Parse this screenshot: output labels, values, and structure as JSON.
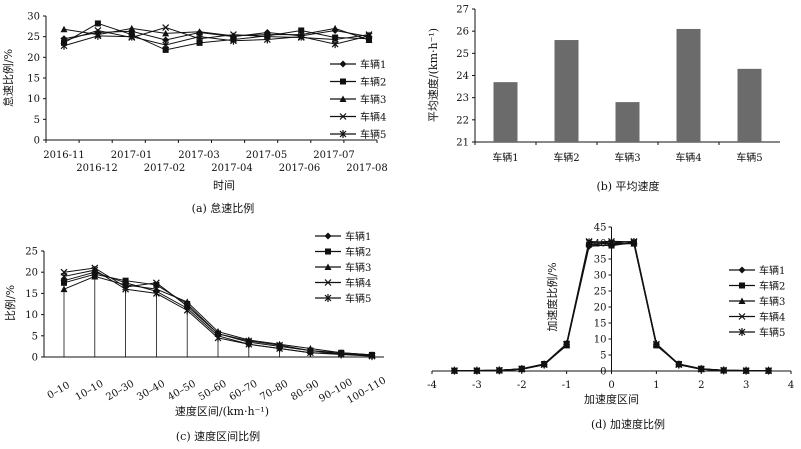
{
  "chart_data": [
    {
      "id": "a",
      "type": "line",
      "caption": "(a) 怠速比例",
      "ylabel": "怠速比例/%",
      "xlabel": "时间",
      "ylim": [
        0,
        30
      ],
      "yticks": [
        0,
        5,
        10,
        15,
        20,
        25,
        30
      ],
      "x_upper_labels": [
        "2016-11",
        "2017-01",
        "2017-03",
        "2017-05",
        "2017-07"
      ],
      "x_lower_labels": [
        "2016-12",
        "2017-02",
        "2017-04",
        "2017-06",
        "2017-08"
      ],
      "series": [
        {
          "name": "车辆1",
          "values": [
            24.5,
            26.0,
            26.3,
            24.2,
            26.0,
            25.0,
            26.0,
            25.2,
            26.5,
            25.0
          ]
        },
        {
          "name": "车辆2",
          "values": [
            23.5,
            28.2,
            25.5,
            21.8,
            23.5,
            24.3,
            25.2,
            26.5,
            24.8,
            24.5
          ]
        },
        {
          "name": "车辆3",
          "values": [
            26.8,
            25.5,
            27.0,
            25.8,
            26.2,
            25.2,
            25.5,
            25.5,
            27.0,
            24.2
          ]
        },
        {
          "name": "车辆4",
          "values": [
            24.0,
            26.5,
            24.8,
            27.2,
            24.5,
            25.5,
            25.0,
            24.8,
            24.3,
            25.5
          ]
        },
        {
          "name": "车辆5",
          "values": [
            22.8,
            25.2,
            25.0,
            23.0,
            25.0,
            24.0,
            24.3,
            25.0,
            23.2,
            25.2
          ]
        }
      ]
    },
    {
      "id": "b",
      "type": "bar",
      "caption": "(b) 平均速度",
      "ylabel": "平均速度/(km·h⁻¹)",
      "ylim": [
        21,
        27
      ],
      "yticks": [
        21,
        22,
        23,
        24,
        25,
        26,
        27
      ],
      "categories": [
        "车辆1",
        "车辆2",
        "车辆3",
        "车辆4",
        "车辆5"
      ],
      "values": [
        23.7,
        25.6,
        22.8,
        26.1,
        24.3
      ],
      "color": "#6b6b6b"
    },
    {
      "id": "c",
      "type": "line",
      "caption": "(c) 速度区间比例",
      "ylabel": "比例/%",
      "xlabel": "速度区间/(km·h⁻¹)",
      "ylim": [
        0,
        25
      ],
      "yticks": [
        0,
        5,
        10,
        15,
        20,
        25
      ],
      "categories": [
        "0–10",
        "10–10",
        "20–30",
        "30–40",
        "40–50",
        "50–60",
        "60–70",
        "70–80",
        "80–90",
        "90–100",
        "100–110"
      ],
      "series": [
        {
          "name": "车辆1",
          "values": [
            18.0,
            20.0,
            17.5,
            15.5,
            11.5,
            5.0,
            3.0,
            2.0,
            1.0,
            0.8,
            0.3
          ]
        },
        {
          "name": "车辆2",
          "values": [
            17.5,
            19.5,
            18.0,
            17.0,
            12.5,
            5.5,
            3.5,
            2.5,
            1.5,
            1.0,
            0.5
          ]
        },
        {
          "name": "车辆3",
          "values": [
            16.0,
            19.0,
            17.0,
            16.0,
            13.0,
            6.0,
            4.0,
            3.0,
            2.0,
            1.0,
            0.5
          ]
        },
        {
          "name": "车辆4",
          "values": [
            20.0,
            21.0,
            16.5,
            17.5,
            12.0,
            5.5,
            3.8,
            2.8,
            1.5,
            0.7,
            0.3
          ]
        },
        {
          "name": "车辆5",
          "values": [
            19.0,
            20.5,
            16.0,
            15.0,
            11.0,
            4.5,
            3.0,
            2.0,
            1.0,
            0.6,
            0.2
          ]
        }
      ]
    },
    {
      "id": "d",
      "type": "line",
      "caption": "(d) 加速度比例",
      "ylabel": "加速度比例/%",
      "xlabel": "加速度区间",
      "xlim": [
        -4,
        4
      ],
      "xticks": [
        -4,
        -3,
        -2,
        -1,
        0,
        1,
        2,
        3,
        4
      ],
      "ylim": [
        0,
        45
      ],
      "yticks": [
        0,
        5,
        10,
        15,
        20,
        25,
        30,
        35,
        40,
        45
      ],
      "x": [
        -3.5,
        -3.0,
        -2.5,
        -2.0,
        -1.5,
        -1.0,
        -0.5,
        0.0,
        0.5,
        1.0,
        1.5,
        2.0,
        2.5,
        3.0,
        3.5
      ],
      "series": [
        {
          "name": "车辆1",
          "values": [
            0.1,
            0.1,
            0.2,
            0.6,
            2.0,
            8.2,
            39.0,
            39.5,
            40.0,
            8.2,
            2.0,
            0.6,
            0.2,
            0.1,
            0.1
          ]
        },
        {
          "name": "车辆2",
          "values": [
            0.1,
            0.1,
            0.2,
            0.7,
            2.2,
            8.5,
            39.5,
            39.2,
            40.2,
            8.0,
            2.2,
            0.7,
            0.2,
            0.1,
            0.1
          ]
        },
        {
          "name": "车辆3",
          "values": [
            0.1,
            0.1,
            0.2,
            0.6,
            2.1,
            8.0,
            40.0,
            39.8,
            39.8,
            8.5,
            2.1,
            0.6,
            0.2,
            0.1,
            0.1
          ]
        },
        {
          "name": "车辆4",
          "values": [
            0.1,
            0.1,
            0.2,
            0.6,
            2.0,
            8.3,
            40.5,
            40.0,
            40.5,
            8.3,
            2.0,
            0.6,
            0.2,
            0.1,
            0.1
          ]
        },
        {
          "name": "车辆5",
          "values": [
            0.1,
            0.1,
            0.2,
            0.6,
            2.0,
            8.4,
            40.2,
            40.5,
            40.3,
            8.4,
            2.0,
            0.6,
            0.2,
            0.1,
            0.1
          ]
        }
      ]
    }
  ]
}
